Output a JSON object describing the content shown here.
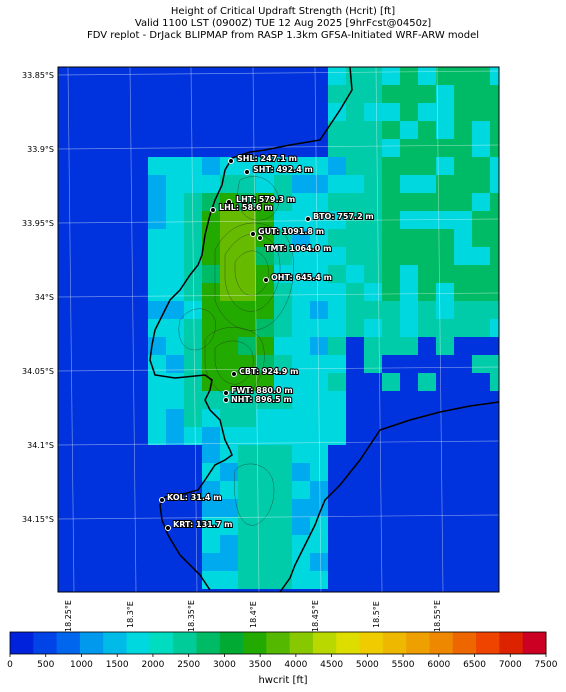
{
  "title": {
    "line1": "Height of Critical Updraft Strength (Hcrit) [ft]",
    "line2": "Valid 1100 LST (0900Z) TUE 12 Aug 2025 [9hrFcst@0450z]",
    "line3": "FDV replot - DrJack BLIPMAP from RASP 1.3km GFSA-Initiated WRF-ARW model"
  },
  "lat_labels": [
    "33.85°S",
    "33.9°S",
    "33.95°S",
    "34°S",
    "34.05°S",
    "34.1°S",
    "34.15°S"
  ],
  "lon_labels": [
    "18.25°E",
    "18.3°E",
    "18.35°E",
    "18.4°E",
    "18.45°E",
    "18.5°E",
    "18.55°E"
  ],
  "sites": [
    {
      "label": "SHL: 247.1 m"
    },
    {
      "label": "SHT: 492.4 m"
    },
    {
      "label": "LHT: 579.3 m"
    },
    {
      "label": "LHL: 58.6 m"
    },
    {
      "label": "BTO: 757.2 m"
    },
    {
      "label": "GUT: 1091.8 m"
    },
    {
      "label": "TMT: 1064.0 m"
    },
    {
      "label": "OHT: 645.4 m"
    },
    {
      "label": "CBT: 924.9 m"
    },
    {
      "label": "FWT: 880.0 m"
    },
    {
      "label": "NHT: 896.5 m"
    },
    {
      "label": "KOL: 31.4 m"
    },
    {
      "label": "KRT: 131.7 m"
    }
  ],
  "colorbar": {
    "ticks": [
      "0",
      "500",
      "1000",
      "1500",
      "2000",
      "2500",
      "3000",
      "3500",
      "4000",
      "4500",
      "5000",
      "5500",
      "6000",
      "6500",
      "7000",
      "7500"
    ],
    "label": "hwcrit [ft]",
    "colors": [
      "#0022dd",
      "#0044e8",
      "#0066ee",
      "#0099ee",
      "#00bbe8",
      "#00d8e0",
      "#00dcc0",
      "#00cc99",
      "#00bb66",
      "#00aa33",
      "#22aa00",
      "#55b800",
      "#88c800",
      "#b8d800",
      "#dddd00",
      "#eecc00",
      "#eeb800",
      "#eea000",
      "#ee8800",
      "#ee6600",
      "#ee4400",
      "#dd2200",
      "#cc0022"
    ]
  }
}
